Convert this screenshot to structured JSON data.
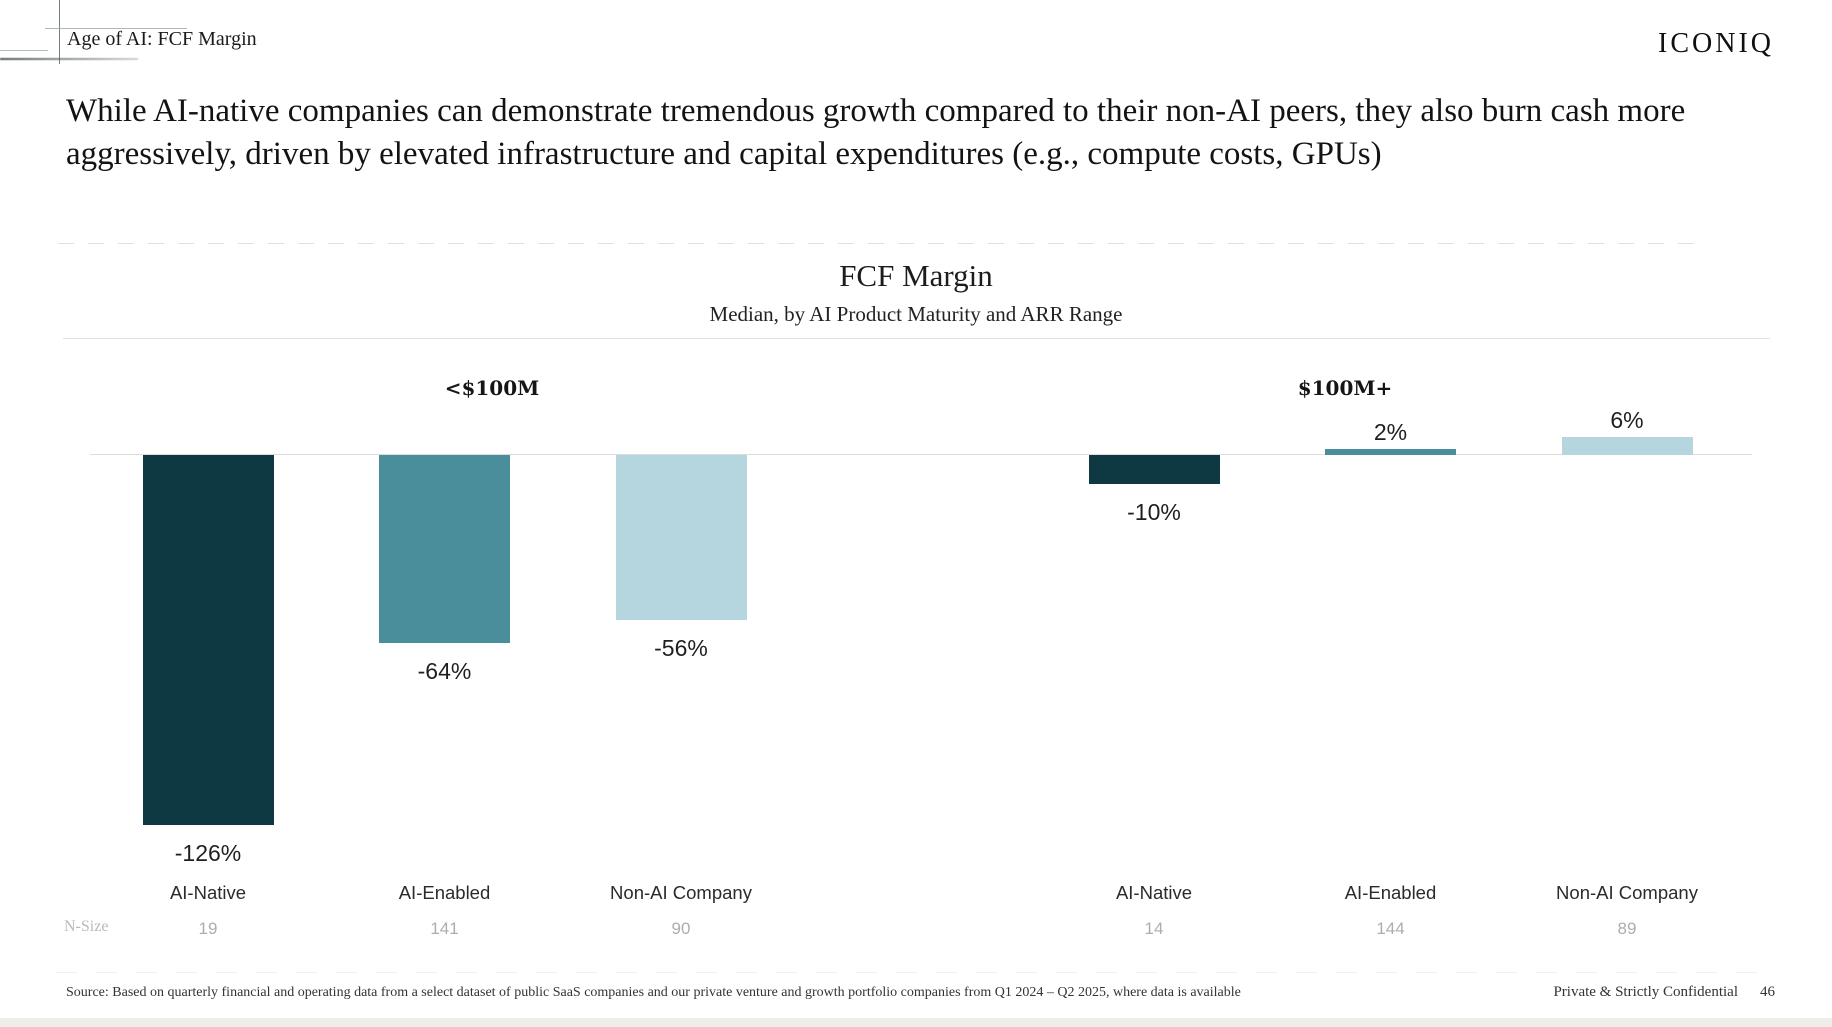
{
  "page": {
    "eyebrow": "Age of AI: FCF Margin",
    "logo": "ICONIQ",
    "headline": "While AI-native companies can demonstrate tremendous growth compared to their non-AI peers, they also burn cash more aggressively, driven by elevated infrastructure and capital expenditures (e.g., compute costs, GPUs)"
  },
  "chart_data": {
    "type": "bar",
    "title": "FCF Margin",
    "subtitle": "Median, by AI Product Maturity and ARR Range",
    "value_suffix": "%",
    "baseline": 0,
    "ylim": [
      -135,
      15
    ],
    "grid": false,
    "n_size_label": "N-Size",
    "groups": [
      {
        "label": "<$100M",
        "categories": [
          "AI-Native",
          "AI-Enabled",
          "Non-AI Company"
        ],
        "values": [
          -126,
          -64,
          -56
        ],
        "n_sizes": [
          "19",
          "141",
          "90"
        ]
      },
      {
        "label": "$100M+",
        "categories": [
          "AI-Native",
          "AI-Enabled",
          "Non-AI Company"
        ],
        "values": [
          -10,
          2,
          6
        ],
        "n_sizes": [
          "14",
          "144",
          "89"
        ]
      }
    ],
    "colors": {
      "AI-Native": "#0e3943",
      "AI-Enabled": "#4a8d9b",
      "Non-AI Company": "#b5d6de"
    }
  },
  "footer": {
    "source": "Source: Based on quarterly financial and operating data from a select dataset of public SaaS companies and our private venture and growth portfolio companies from Q1 2024 – Q2 2025, where data is available",
    "confidential": "Private & Strictly Confidential",
    "page_number": "46"
  }
}
